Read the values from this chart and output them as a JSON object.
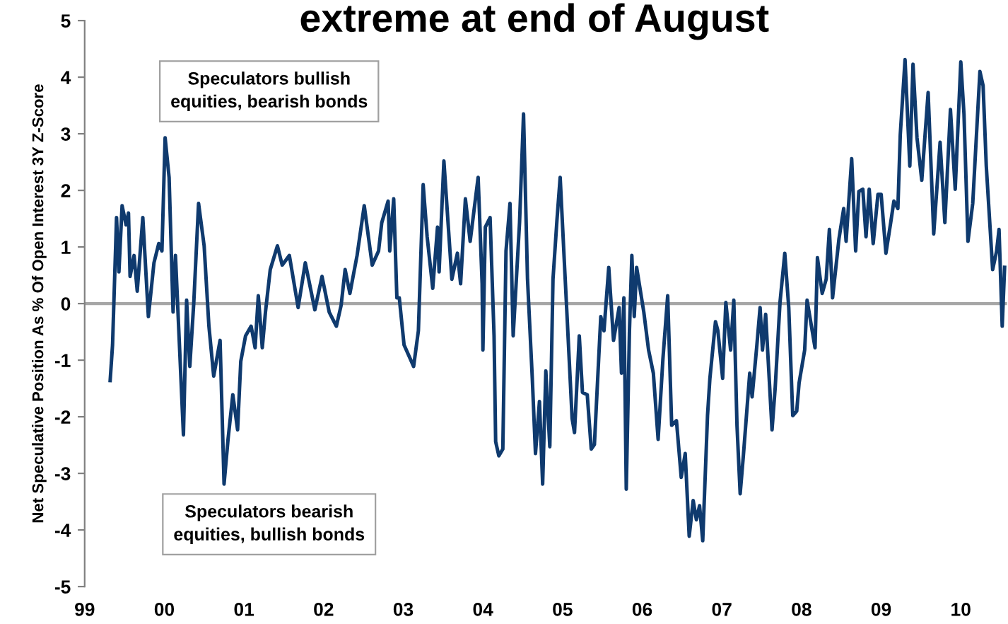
{
  "chart_data": {
    "type": "line",
    "title": "extreme at end of August",
    "ylabel": "Net Speculative Position As % Of Open Interest 3Y Z-Score",
    "annotations": [
      "Speculators bullish\nequities, bearish bonds",
      "Speculators bearish\nequities, bullish bonds"
    ],
    "x": [
      1999.32,
      1999.35,
      1999.4,
      1999.43,
      1999.47,
      1999.52,
      1999.55,
      1999.57,
      1999.62,
      1999.66,
      1999.73,
      1999.8,
      1999.87,
      1999.93,
      1999.97,
      2000.01,
      2000.06,
      2000.11,
      2000.14,
      2000.24,
      2000.28,
      2000.32,
      2000.37,
      2000.43,
      2000.5,
      2000.56,
      2000.62,
      2000.7,
      2000.75,
      2000.8,
      2000.86,
      2000.92,
      2000.96,
      2001.02,
      2001.09,
      2001.14,
      2001.18,
      2001.23,
      2001.27,
      2001.33,
      2001.42,
      2001.48,
      2001.57,
      2001.68,
      2001.77,
      2001.89,
      2001.98,
      2002.07,
      2002.16,
      2002.22,
      2002.27,
      2002.33,
      2002.42,
      2002.51,
      2002.61,
      2002.69,
      2002.73,
      2002.81,
      2002.83,
      2002.88,
      2002.92,
      2002.95,
      2003.01,
      2003.13,
      2003.19,
      2003.25,
      2003.3,
      2003.37,
      2003.43,
      2003.45,
      2003.51,
      2003.57,
      2003.61,
      2003.68,
      2003.72,
      2003.78,
      2003.84,
      2003.94,
      2003.99,
      2004.0,
      2004.03,
      2004.09,
      2004.14,
      2004.16,
      2004.2,
      2004.25,
      2004.29,
      2004.34,
      2004.38,
      2004.46,
      2004.51,
      2004.56,
      2004.62,
      2004.66,
      2004.71,
      2004.75,
      2004.79,
      2004.84,
      2004.88,
      2004.93,
      2004.97,
      2005.03,
      2005.06,
      2005.12,
      2005.15,
      2005.21,
      2005.25,
      2005.31,
      2005.36,
      2005.4,
      2005.48,
      2005.52,
      2005.58,
      2005.64,
      2005.71,
      2005.74,
      2005.77,
      2005.8,
      2005.84,
      2005.87,
      2005.9,
      2005.93,
      2006.02,
      2006.08,
      2006.14,
      2006.2,
      2006.26,
      2006.32,
      2006.37,
      2006.43,
      2006.49,
      2006.54,
      2006.59,
      2006.64,
      2006.68,
      2006.72,
      2006.76,
      2006.82,
      2006.85,
      2006.92,
      2006.95,
      2007.01,
      2007.05,
      2007.11,
      2007.15,
      2007.19,
      2007.23,
      2007.27,
      2007.35,
      2007.38,
      2007.44,
      2007.48,
      2007.51,
      2007.55,
      2007.63,
      2007.67,
      2007.73,
      2007.79,
      2007.84,
      2007.89,
      2007.94,
      2007.97,
      2008.04,
      2008.07,
      2008.17,
      2008.2,
      2008.26,
      2008.31,
      2008.35,
      2008.39,
      2008.47,
      2008.53,
      2008.56,
      2008.63,
      2008.68,
      2008.72,
      2008.77,
      2008.81,
      2008.85,
      2008.9,
      2008.96,
      2009.0,
      2009.06,
      2009.12,
      2009.16,
      2009.21,
      2009.24,
      2009.3,
      2009.36,
      2009.4,
      2009.45,
      2009.51,
      2009.59,
      2009.66,
      2009.74,
      2009.8,
      2009.87,
      2009.93,
      2010.0,
      2010.04,
      2010.09,
      2010.15,
      2010.24,
      2010.28,
      2010.32,
      2010.4,
      2010.45,
      2010.48,
      2010.52,
      2010.55
    ],
    "series": [
      {
        "color": "#0f3a6e",
        "values": [
          -1.36,
          -0.73,
          1.52,
          0.56,
          1.73,
          1.39,
          1.6,
          0.48,
          0.85,
          0.22,
          1.52,
          -0.23,
          0.72,
          1.06,
          0.93,
          2.93,
          2.23,
          -0.15,
          0.85,
          -2.32,
          0.06,
          -1.11,
          0.02,
          1.77,
          1.02,
          -0.4,
          -1.28,
          -0.65,
          -3.19,
          -2.4,
          -1.61,
          -2.23,
          -1.02,
          -0.57,
          -0.4,
          -0.78,
          0.14,
          -0.78,
          -0.15,
          0.6,
          1.02,
          0.68,
          0.85,
          -0.07,
          0.72,
          -0.11,
          0.48,
          -0.15,
          -0.4,
          -0.03,
          0.6,
          0.18,
          0.85,
          1.73,
          0.68,
          0.93,
          1.43,
          1.81,
          0.93,
          1.85,
          0.1,
          0.1,
          -0.73,
          -1.11,
          -0.48,
          2.1,
          1.18,
          0.27,
          1.35,
          0.56,
          2.52,
          1.27,
          0.43,
          0.89,
          0.35,
          1.85,
          1.1,
          2.23,
          0.35,
          -0.82,
          1.35,
          1.52,
          -0.57,
          -2.44,
          -2.69,
          -2.57,
          0.93,
          1.77,
          -0.57,
          1.43,
          3.35,
          0.43,
          -1.32,
          -2.65,
          -1.73,
          -3.19,
          -1.19,
          -2.53,
          0.43,
          1.48,
          2.23,
          0.52,
          -0.32,
          -2.03,
          -2.28,
          -0.57,
          -1.57,
          -1.61,
          -2.57,
          -2.49,
          -0.23,
          -0.48,
          0.64,
          -0.65,
          -0.07,
          -1.23,
          0.1,
          -3.28,
          -0.48,
          0.85,
          -0.23,
          0.64,
          -0.15,
          -0.82,
          -1.23,
          -2.4,
          -0.98,
          0.14,
          -2.15,
          -2.07,
          -3.07,
          -2.65,
          -4.11,
          -3.48,
          -3.82,
          -3.57,
          -4.19,
          -1.98,
          -1.32,
          -0.32,
          -0.48,
          -1.32,
          0.02,
          -0.82,
          0.06,
          -2.15,
          -3.36,
          -2.69,
          -1.23,
          -1.65,
          -0.73,
          -0.07,
          -0.82,
          -0.19,
          -2.23,
          -1.48,
          0.02,
          0.89,
          -0.07,
          -1.98,
          -1.9,
          -1.4,
          -0.82,
          0.06,
          -0.78,
          0.81,
          0.18,
          0.43,
          1.31,
          0.1,
          1.14,
          1.68,
          1.1,
          2.56,
          0.93,
          1.98,
          2.02,
          1.18,
          2.02,
          1.06,
          1.93,
          1.93,
          0.89,
          1.43,
          1.81,
          1.68,
          2.98,
          4.31,
          2.43,
          4.23,
          2.93,
          2.18,
          3.73,
          1.23,
          2.85,
          1.43,
          3.43,
          2.02,
          4.27,
          3.35,
          1.1,
          1.77,
          4.1,
          3.85,
          2.43,
          0.6,
          0.93,
          1.31,
          -0.4,
          0.64
        ]
      }
    ],
    "xlim": [
      1999,
      2010.58
    ],
    "xticks": [
      {
        "value": 1999,
        "label": "99"
      },
      {
        "value": 2000,
        "label": "00"
      },
      {
        "value": 2001,
        "label": "01"
      },
      {
        "value": 2002,
        "label": "02"
      },
      {
        "value": 2003,
        "label": "03"
      },
      {
        "value": 2004,
        "label": "04"
      },
      {
        "value": 2005,
        "label": "05"
      },
      {
        "value": 2006,
        "label": "06"
      },
      {
        "value": 2007,
        "label": "07"
      },
      {
        "value": 2008,
        "label": "08"
      },
      {
        "value": 2009,
        "label": "09"
      },
      {
        "value": 2010,
        "label": "10"
      }
    ],
    "ylim": [
      -5,
      5
    ],
    "yticks": [
      -5,
      -4,
      -3,
      -2,
      -1,
      0,
      1,
      2,
      3,
      4,
      5
    ],
    "ref_lines": [
      {
        "axis": "y",
        "value": 0,
        "color": "#a6a6a6"
      }
    ],
    "grid": false,
    "legend": false
  }
}
